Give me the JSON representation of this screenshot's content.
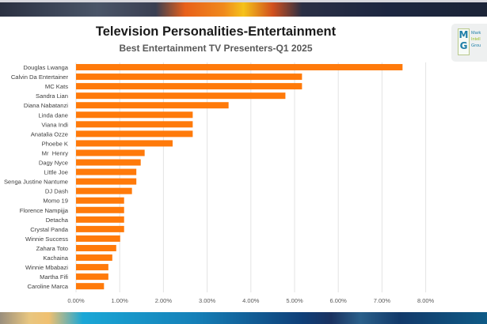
{
  "header": {
    "title": "Television Personalities-Entertainment",
    "subtitle": "Best Entertainment TV Presenters-Q1 2025"
  },
  "logo": {
    "mark_top": "M",
    "mark_bottom": "G",
    "lines": [
      "Mark",
      "Intell",
      "Grou"
    ]
  },
  "colors": {
    "bar": "#ff7a0a",
    "grid": "#e3e3e3",
    "label": "#404040",
    "tick": "#595959"
  },
  "chart_data": {
    "type": "bar",
    "orientation": "horizontal",
    "title": "Television Personalities-Entertainment",
    "subtitle": "Best Entertainment TV Presenters-Q1 2025",
    "xlabel": "",
    "ylabel": "",
    "xlim": [
      0,
      8
    ],
    "grid": true,
    "legend": "none",
    "x_ticks": [
      "0.00%",
      "1.00%",
      "2.00%",
      "3.00%",
      "4.00%",
      "5.00%",
      "6.00%",
      "7.00%",
      "8.00%"
    ],
    "categories": [
      "Douglas Lwanga",
      "Calvin Da Entertainer",
      "MC Kats",
      "Sandra Lian",
      "Diana Nabatanzi",
      "Linda dane",
      "Viana Indi",
      "Anatalia Ozze",
      "Phoebe K",
      "Mr  Henry",
      "Dagy Nyce",
      "Little Joe",
      "Senga Justine Nantume",
      "DJ Dash",
      "Momo 19",
      "Florence Nampijja",
      "Detacha",
      "Crystal Panda",
      "Winnie Success",
      "Zahara Toto",
      "Kachaina",
      "Winnie Mbabazi",
      "Martha Fifi",
      "Caroline Marca"
    ],
    "values": [
      7.47,
      5.17,
      5.17,
      4.79,
      3.49,
      2.67,
      2.67,
      2.67,
      2.21,
      1.57,
      1.48,
      1.38,
      1.38,
      1.28,
      1.1,
      1.1,
      1.1,
      1.1,
      1.01,
      0.92,
      0.83,
      0.74,
      0.74,
      0.64
    ],
    "unit": "%"
  }
}
